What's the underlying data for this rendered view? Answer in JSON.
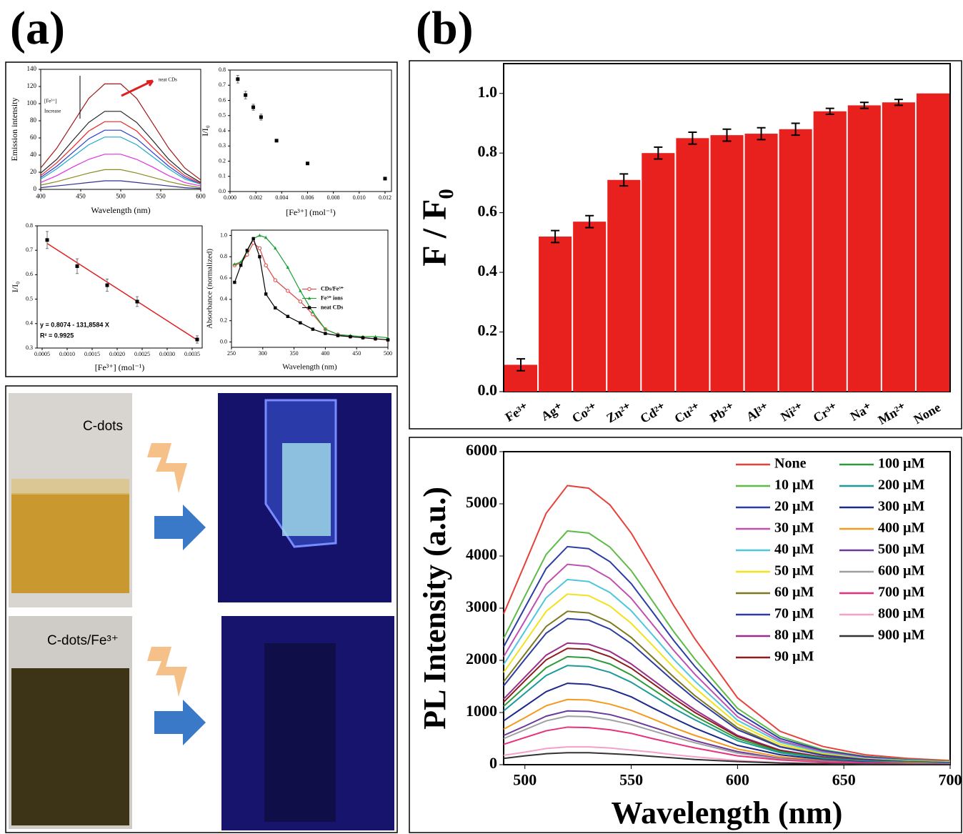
{
  "panels": {
    "a": "(a)",
    "b": "(b)"
  },
  "photos": {
    "top_label": "C-dots",
    "bottom_label": "C-dots/Fe³⁺"
  },
  "chart_data": [
    {
      "type": "line",
      "xlabel": "Wavelength (nm)",
      "ylabel": "Emission intensity",
      "annotations": [
        "neat CDs",
        "[Fe³⁺]",
        "Increase"
      ],
      "x": [
        400,
        420,
        440,
        460,
        480,
        500,
        520,
        540,
        560,
        580,
        600
      ],
      "xlim": [
        400,
        600
      ],
      "xticks": [
        400,
        450,
        500,
        550,
        600
      ],
      "ylim": [
        0,
        140
      ],
      "yticks": [
        0,
        20,
        40,
        60,
        80,
        100,
        120,
        140
      ],
      "series": [
        {
          "color": "#a01818",
          "values": [
            25,
            48,
            77,
            106,
            123,
            123,
            106,
            77,
            48,
            25,
            11
          ]
        },
        {
          "color": "#222222",
          "values": [
            19,
            35,
            57,
            78,
            91,
            91,
            78,
            57,
            35,
            19,
            8
          ]
        },
        {
          "color": "#e8282a",
          "values": [
            16,
            31,
            49,
            68,
            79,
            79,
            68,
            49,
            31,
            16,
            7
          ]
        },
        {
          "color": "#2a3bd0",
          "values": [
            14,
            27,
            43,
            59,
            69,
            69,
            59,
            43,
            27,
            14,
            6
          ]
        },
        {
          "color": "#20a8c8",
          "values": [
            12,
            24,
            38,
            52,
            61,
            61,
            52,
            38,
            24,
            12,
            6
          ]
        },
        {
          "color": "#e030e0",
          "values": [
            8,
            16,
            26,
            35,
            41,
            41,
            35,
            26,
            16,
            8,
            4
          ]
        },
        {
          "color": "#8a8a20",
          "values": [
            5,
            9,
            14,
            19,
            23,
            23,
            19,
            14,
            9,
            5,
            2
          ]
        },
        {
          "color": "#303090",
          "values": [
            2,
            4,
            6,
            8,
            10,
            10,
            8,
            6,
            4,
            2,
            1
          ]
        }
      ]
    },
    {
      "type": "scatter",
      "xlabel": "[Fe³⁺] (mol⁻¹)",
      "ylabel": "I/I₀",
      "x": [
        0.0006,
        0.0012,
        0.0018,
        0.0024,
        0.0036,
        0.006,
        0.012
      ],
      "xlim": [
        0,
        0.0125
      ],
      "xticks": [
        {
          "value": 0,
          "label": "0.000"
        },
        0.002,
        0.004,
        0.006,
        0.008,
        {
          "value": 0.01,
          "label": "0.010"
        },
        0.012
      ],
      "ylim": [
        0,
        0.8
      ],
      "yticks": [
        {
          "value": 0,
          "label": "0.0"
        },
        0.1,
        0.2,
        0.3,
        0.4,
        0.5,
        0.6,
        0.7,
        0.8
      ],
      "series": [
        {
          "color": "#000000",
          "values": [
            0.74,
            0.635,
            0.555,
            0.49,
            0.335,
            0.185,
            0.085
          ],
          "errors": [
            0.025,
            0.025,
            0.02,
            0.02,
            0.005,
            0.005,
            0.005
          ]
        }
      ]
    },
    {
      "type": "scatter",
      "xlabel": "[Fe³⁺] (mol⁻¹)",
      "ylabel": "I/I₀",
      "annotations": [
        "y = 0.8074 - 131,8584 X",
        "R² = 0.9925"
      ],
      "x": [
        0.0006,
        0.0012,
        0.0018,
        0.0024,
        0.0036
      ],
      "xlim": [
        0.0004,
        0.0037
      ],
      "xticks": [
        0.0005,
        {
          "value": 0.001,
          "label": "0.0010"
        },
        0.0015,
        {
          "value": 0.002,
          "label": "0.0020"
        },
        0.0025,
        {
          "value": 0.003,
          "label": "0.0030"
        },
        0.0035
      ],
      "ylim": [
        0.3,
        0.8
      ],
      "yticks": [
        0.3,
        0.4,
        0.5,
        0.6,
        0.7,
        0.8
      ],
      "fit": {
        "color": "#e02020",
        "x": [
          0.0006,
          0.0036
        ],
        "values": [
          0.728,
          0.333
        ]
      },
      "series": [
        {
          "color": "#000000",
          "values": [
            0.742,
            0.635,
            0.557,
            0.49,
            0.335
          ],
          "errors": [
            0.035,
            0.03,
            0.025,
            0.02,
            0.015
          ]
        }
      ]
    },
    {
      "type": "line",
      "xlabel": "Wavelength (nm)",
      "ylabel": "Absorbance (normalized)",
      "legend": "center-right",
      "x": [
        255,
        265,
        275,
        285,
        295,
        305,
        320,
        340,
        360,
        380,
        400,
        420,
        440,
        460,
        480,
        500
      ],
      "xlim": [
        250,
        500
      ],
      "xticks": [
        250,
        300,
        350,
        400,
        450,
        500
      ],
      "ylim": [
        -0.05,
        1.05
      ],
      "yticks": [
        {
          "value": 0,
          "label": "0.0"
        },
        0.2,
        0.4,
        0.6,
        0.8,
        {
          "value": 1,
          "label": "1.0"
        }
      ],
      "series": [
        {
          "name": "CDs/Fe³⁺",
          "color": "#e04040",
          "marker": "circle-open",
          "values": [
            0.72,
            0.74,
            0.82,
            0.93,
            0.88,
            0.72,
            0.58,
            0.48,
            0.38,
            0.26,
            0.12,
            0.07,
            0.05,
            0.04,
            0.03,
            0.02
          ]
        },
        {
          "name": "Fe³⁺ ions",
          "color": "#18a030",
          "marker": "triangle",
          "values": [
            0.73,
            0.75,
            0.85,
            0.97,
            1.0,
            0.98,
            0.88,
            0.7,
            0.48,
            0.28,
            0.12,
            0.07,
            0.06,
            0.05,
            0.05,
            0.04
          ]
        },
        {
          "name": "neat CDs",
          "color": "#000000",
          "marker": "square",
          "values": [
            0.56,
            0.72,
            0.86,
            0.97,
            0.8,
            0.45,
            0.32,
            0.24,
            0.18,
            0.12,
            0.08,
            0.06,
            0.05,
            0.04,
            0.03,
            0.02
          ]
        }
      ]
    },
    {
      "type": "bar",
      "ylabel": "F / F₀",
      "color": "#e8211f",
      "categories": [
        "Fe³⁺",
        "Ag⁺",
        "Co²⁺",
        "Zn²⁺",
        "Cd²⁺",
        "Cu²⁺",
        "Pb²⁺",
        "Al³⁺",
        "Ni²⁺",
        "Cr³⁺",
        "Na⁺",
        "Mn²⁺",
        "None"
      ],
      "values": [
        0.09,
        0.52,
        0.57,
        0.71,
        0.8,
        0.85,
        0.86,
        0.865,
        0.88,
        0.94,
        0.96,
        0.97,
        1.0
      ],
      "errors": [
        0.02,
        0.02,
        0.02,
        0.02,
        0.02,
        0.02,
        0.02,
        0.02,
        0.02,
        0.01,
        0.01,
        0.01,
        null
      ],
      "ylim": [
        0,
        1.1
      ],
      "yticks": [
        {
          "value": 0,
          "label": "0.0"
        },
        0.2,
        0.4,
        0.6,
        0.8,
        {
          "value": 1,
          "label": "1.0"
        }
      ]
    },
    {
      "type": "line",
      "xlabel": "Wavelength (nm)",
      "ylabel": "PL Intensity (a.u.)",
      "legend": "upper-right",
      "x": [
        490,
        500,
        510,
        520,
        530,
        540,
        550,
        560,
        570,
        580,
        600,
        620,
        640,
        660,
        680,
        700
      ],
      "xlim": [
        490,
        700
      ],
      "xticks": [
        500,
        550,
        600,
        650,
        700
      ],
      "ylim": [
        0,
        6000
      ],
      "yticks": [
        0,
        1000,
        2000,
        3000,
        4000,
        5000,
        6000
      ],
      "series": [
        {
          "name": "None",
          "color": "#e8413c",
          "values": [
            2890,
            3850,
            4820,
            5350,
            5300,
            4980,
            4440,
            3750,
            3050,
            2410,
            1280,
            640,
            350,
            190,
            120,
            80
          ]
        },
        {
          "name": "10 µM",
          "color": "#5dbb46",
          "values": [
            2420,
            3230,
            4030,
            4480,
            4440,
            4170,
            3720,
            3140,
            2550,
            2020,
            1080,
            540,
            290,
            160,
            100,
            70
          ]
        },
        {
          "name": "20 µM",
          "color": "#2c3ea6",
          "values": [
            2260,
            3010,
            3760,
            4180,
            4140,
            3890,
            3470,
            2930,
            2380,
            1880,
            1000,
            500,
            270,
            150,
            90,
            60
          ]
        },
        {
          "name": "30 µM",
          "color": "#c050b0",
          "values": [
            2070,
            2760,
            3460,
            3840,
            3800,
            3570,
            3190,
            2690,
            2190,
            1730,
            920,
            460,
            250,
            130,
            80,
            60
          ]
        },
        {
          "name": "40 µM",
          "color": "#4ec6dc",
          "values": [
            1920,
            2560,
            3200,
            3550,
            3510,
            3300,
            2950,
            2490,
            2020,
            1600,
            850,
            430,
            230,
            120,
            80,
            50
          ]
        },
        {
          "name": "50 µM",
          "color": "#f2e21e",
          "values": [
            1770,
            2350,
            2940,
            3270,
            3240,
            3040,
            2710,
            2290,
            1860,
            1470,
            780,
            390,
            210,
            110,
            70,
            50
          ]
        },
        {
          "name": "60 µM",
          "color": "#7c7a20",
          "values": [
            1590,
            2120,
            2650,
            2940,
            2910,
            2730,
            2440,
            2060,
            1680,
            1320,
            710,
            350,
            190,
            100,
            60,
            40
          ]
        },
        {
          "name": "70 µM",
          "color": "#2d3ca0",
          "values": [
            1510,
            2020,
            2520,
            2800,
            2770,
            2600,
            2320,
            1960,
            1600,
            1260,
            670,
            340,
            180,
            100,
            60,
            40
          ]
        },
        {
          "name": "80 µM",
          "color": "#9b2f8e",
          "values": [
            1260,
            1680,
            2100,
            2330,
            2310,
            2170,
            1930,
            1630,
            1330,
            1050,
            560,
            280,
            150,
            80,
            50,
            30
          ]
        },
        {
          "name": "90 µM",
          "color": "#8b1e1e",
          "values": [
            1200,
            1610,
            2010,
            2230,
            2210,
            2070,
            1850,
            1560,
            1270,
            1000,
            540,
            270,
            140,
            80,
            50,
            30
          ]
        },
        {
          "name": "100 µM",
          "color": "#2e9b3a",
          "values": [
            1120,
            1490,
            1860,
            2070,
            2050,
            1930,
            1720,
            1450,
            1180,
            930,
            500,
            250,
            130,
            70,
            50,
            30
          ]
        },
        {
          "name": "200 µM",
          "color": "#1f9a9a",
          "values": [
            1030,
            1370,
            1710,
            1900,
            1880,
            1770,
            1580,
            1330,
            1080,
            860,
            460,
            230,
            120,
            70,
            40,
            30
          ]
        },
        {
          "name": "300 µM",
          "color": "#1e2a8a",
          "values": [
            840,
            1120,
            1400,
            1560,
            1540,
            1450,
            1300,
            1090,
            890,
            700,
            370,
            190,
            100,
            50,
            30,
            20
          ]
        },
        {
          "name": "400 µM",
          "color": "#f39a1f",
          "values": [
            680,
            900,
            1130,
            1250,
            1240,
            1160,
            1040,
            880,
            710,
            560,
            300,
            150,
            80,
            40,
            30,
            20
          ]
        },
        {
          "name": "500 µM",
          "color": "#6a3a9a",
          "values": [
            560,
            740,
            930,
            1030,
            1020,
            960,
            850,
            720,
            590,
            460,
            250,
            120,
            70,
            40,
            20,
            20
          ]
        },
        {
          "name": "600 µM",
          "color": "#a0a0a0",
          "values": [
            500,
            670,
            840,
            930,
            920,
            860,
            770,
            650,
            530,
            420,
            220,
            110,
            60,
            30,
            20,
            10
          ]
        },
        {
          "name": "700 µM",
          "color": "#e8317a",
          "values": [
            390,
            520,
            650,
            720,
            710,
            670,
            600,
            500,
            410,
            320,
            170,
            90,
            50,
            30,
            20,
            10
          ]
        },
        {
          "name": "800 µM",
          "color": "#f4a0c8",
          "values": [
            180,
            240,
            310,
            340,
            340,
            320,
            280,
            240,
            190,
            150,
            80,
            40,
            20,
            10,
            10,
            10
          ]
        },
        {
          "name": "900 µM",
          "color": "#333333",
          "values": [
            120,
            170,
            210,
            230,
            230,
            210,
            190,
            160,
            130,
            100,
            60,
            30,
            20,
            10,
            5,
            3
          ]
        }
      ]
    }
  ]
}
